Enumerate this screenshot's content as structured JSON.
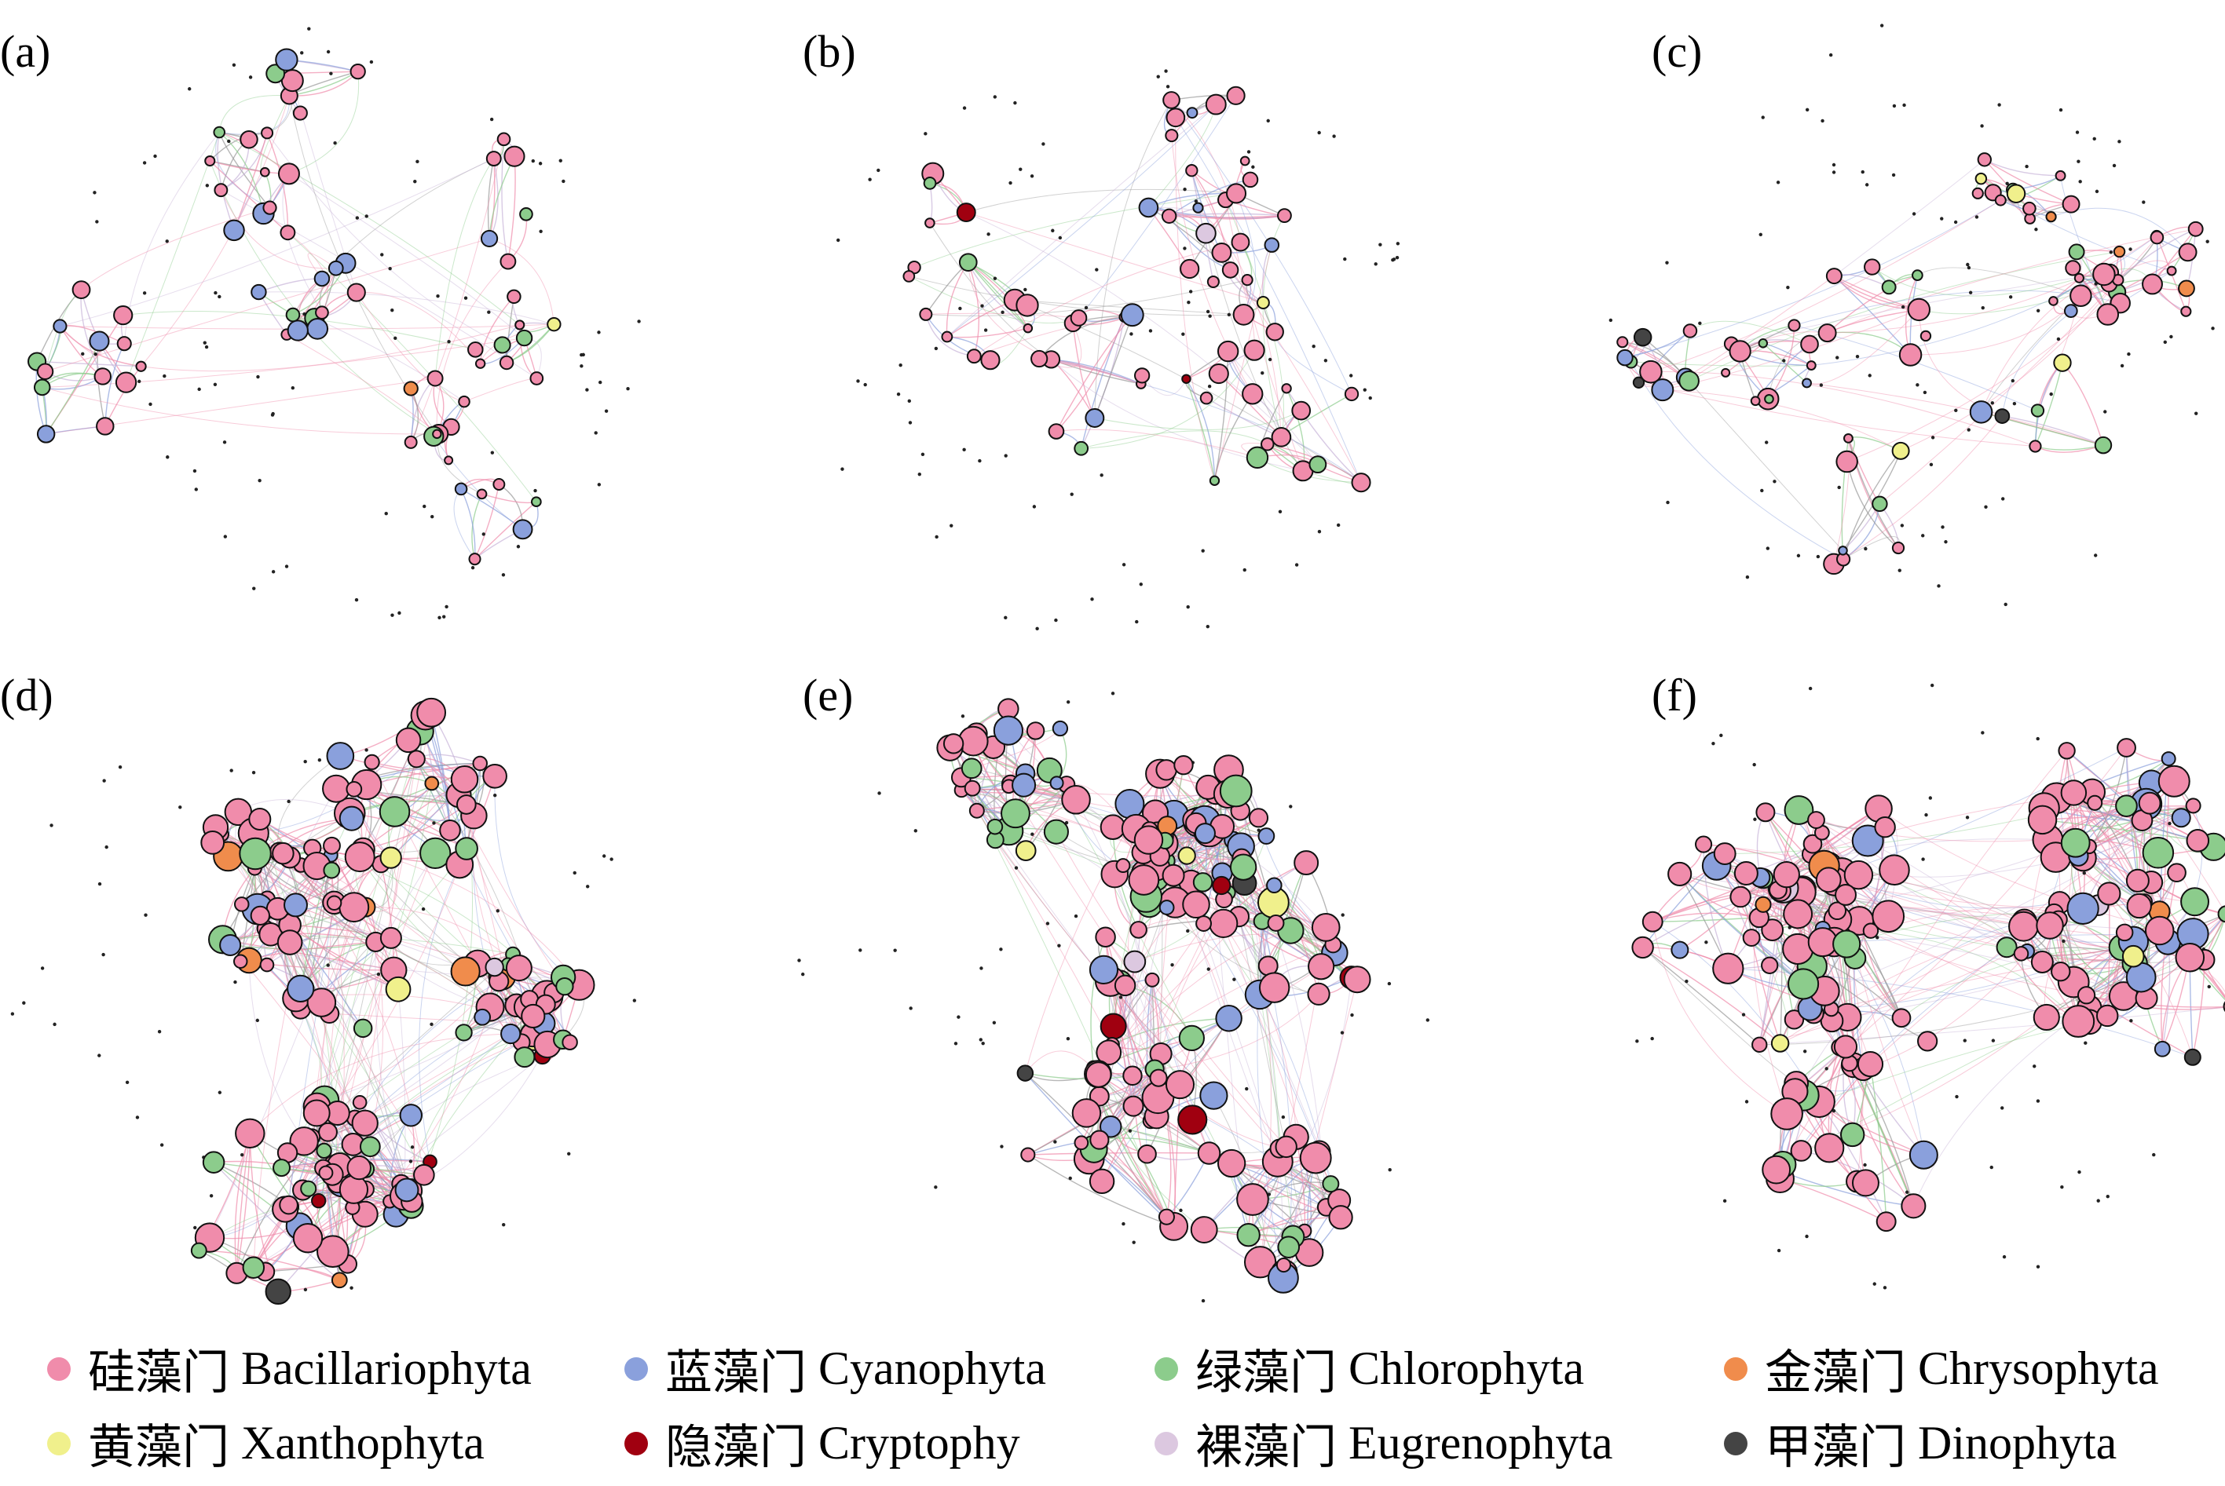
{
  "panels": [
    {
      "label": "(a)",
      "cluster": "sparse"
    },
    {
      "label": "(b)",
      "cluster": "sparse"
    },
    {
      "label": "(c)",
      "cluster": "sparse"
    },
    {
      "label": "(d)",
      "cluster": "dense"
    },
    {
      "label": "(e)",
      "cluster": "dense"
    },
    {
      "label": "(f)",
      "cluster": "dense"
    }
  ],
  "legend": [
    {
      "cn": "硅藻门",
      "en": "Bacillariophyta",
      "color": "#f08cab"
    },
    {
      "cn": "蓝藻门",
      "en": "Cyanophyta",
      "color": "#8aa0dc"
    },
    {
      "cn": "绿藻门",
      "en": "Chlorophyta",
      "color": "#8ccc8c"
    },
    {
      "cn": "金藻门",
      "en": "Chrysophyta",
      "color": "#f08c4c"
    },
    {
      "cn": "黄藻门",
      "en": "Xanthophyta",
      "color": "#f0f08c"
    },
    {
      "cn": "隐藻门",
      "en": "Cryptophy",
      "color": "#a00010"
    },
    {
      "cn": "裸藻门",
      "en": "Eugrenophyta",
      "color": "#dcc8e0"
    },
    {
      "cn": "甲藻门",
      "en": "Dinophyta",
      "color": "#444444"
    }
  ]
}
